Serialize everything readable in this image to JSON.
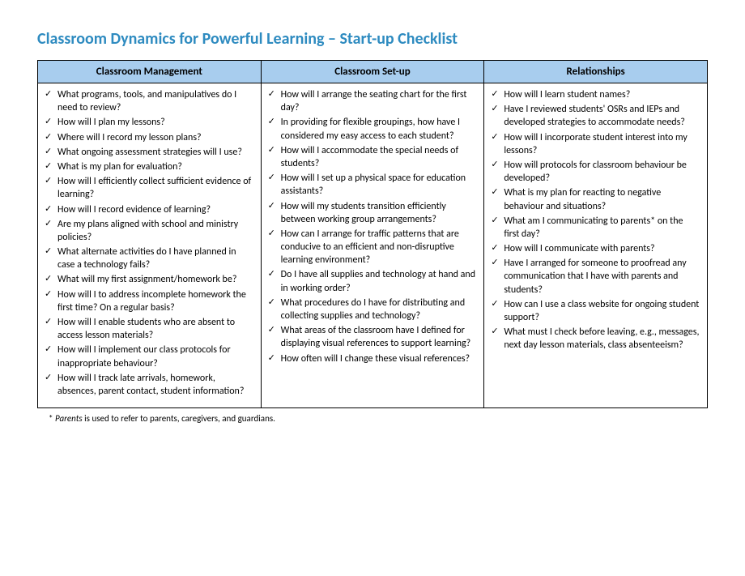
{
  "title": {
    "text": "Classroom Dynamics for Powerful Learning – Start-up Checklist",
    "color": "#2e8bc0"
  },
  "table": {
    "header_bg": "#a8cdee",
    "border_color": "#000000",
    "columns": [
      {
        "label": "Classroom Management"
      },
      {
        "label": "Classroom Set-up"
      },
      {
        "label": "Relationships"
      }
    ],
    "col1_items": [
      "What programs, tools, and manipulatives do I need to review?",
      "How will I plan my lessons?",
      "Where will I record my lesson plans?",
      "What ongoing assessment strategies will I use?",
      "What is my plan for evaluation?",
      "How will I efficiently collect sufficient evidence of learning?",
      "How will I record evidence of learning?",
      " Are my plans aligned with school and ministry policies?",
      "What alternate activities do I have planned in case a technology fails?",
      "What will my first assignment/homework be?",
      "How will I to address incomplete homework the first time? On a regular basis?",
      "How will I enable students who are absent to access lesson materials?",
      "How will I implement our class protocols for inappropriate behaviour?",
      "How will I track late arrivals, homework, absences, parent contact, student information?"
    ],
    "col2_items": [
      "How will I arrange the seating chart for the first day?",
      "In providing for flexible groupings, how have I considered my easy access to each student?",
      "How will I accommodate the special needs of students?",
      "How will I set up a physical space for education assistants?",
      "How will my students transition efficiently between working group arrangements?",
      "How can I arrange for traffic patterns that are conducive to an efficient and non-disruptive learning environment?",
      "Do I have all supplies and technology at hand and in working order?",
      "What procedures do I have for distributing and collecting supplies and technology?",
      "What areas of the classroom have I defined for displaying visual references to support learning?",
      "How often will I change these visual references?"
    ],
    "col3_items": [
      "How will I learn student names?",
      "Have I reviewed students' OSRs and IEPs and developed strategies to accommodate needs?",
      "How will I incorporate student interest into my lessons?",
      "How will protocols for classroom behaviour be developed?",
      "What is my plan for reacting to negative behaviour and situations?",
      "What am I communicating to parents* on the first day?",
      "How will I communicate with parents?",
      "Have I arranged for someone to proofread any communication that I have with parents and students?",
      "How can I use a class website for ongoing student support?",
      "What must I check before leaving, e.g., messages, next day lesson materials, class absenteeism?"
    ]
  },
  "footnote": {
    "marker": "*",
    "term": "Parents",
    "text": " is used to refer to parents, caregivers, and guardians."
  }
}
